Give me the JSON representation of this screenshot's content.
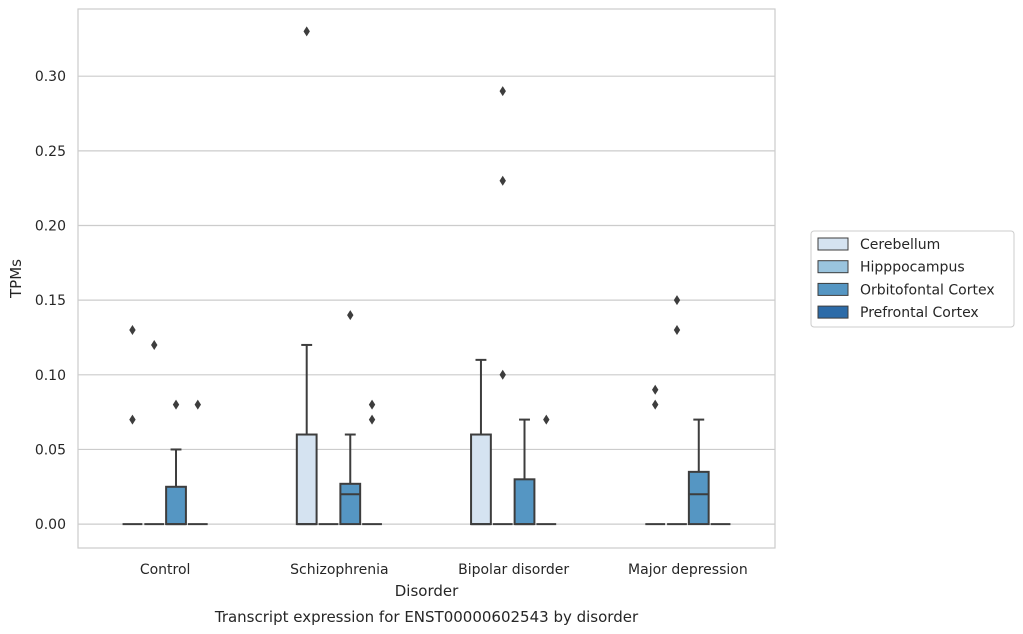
{
  "chart_data": {
    "type": "box",
    "caption": "Transcript expression for ENST00000602543 by disorder",
    "xlabel": "Disorder",
    "ylabel": "TPMs",
    "ylim": [
      -0.016,
      0.345
    ],
    "yticks": [
      0.0,
      0.05,
      0.1,
      0.15,
      0.2,
      0.25,
      0.3
    ],
    "ytick_labels": [
      "0.00",
      "0.05",
      "0.10",
      "0.15",
      "0.20",
      "0.25",
      "0.30"
    ],
    "grid": true,
    "legend_position": "right",
    "categories": [
      "Control",
      "Schizophrenia",
      "Bipolar disorder",
      "Major depression"
    ],
    "series": [
      {
        "name": "Cerebellum",
        "color": "#d5e3f1",
        "boxes": [
          {
            "q1": 0,
            "median": 0,
            "q3": 0,
            "whisker_low": 0,
            "whisker_high": 0,
            "outliers": [
              0.07,
              0.13
            ]
          },
          {
            "q1": 0,
            "median": 0,
            "q3": 0.06,
            "whisker_low": 0,
            "whisker_high": 0.12,
            "outliers": [
              0.33
            ]
          },
          {
            "q1": 0,
            "median": 0,
            "q3": 0.06,
            "whisker_low": 0,
            "whisker_high": 0.11,
            "outliers": []
          },
          {
            "q1": 0,
            "median": 0,
            "q3": 0,
            "whisker_low": 0,
            "whisker_high": 0,
            "outliers": [
              0.08,
              0.09
            ]
          }
        ]
      },
      {
        "name": "Hipppocampus",
        "color": "#9ac4de",
        "boxes": [
          {
            "q1": 0,
            "median": 0,
            "q3": 0,
            "whisker_low": 0,
            "whisker_high": 0,
            "outliers": [
              0.12
            ]
          },
          {
            "q1": 0,
            "median": 0,
            "q3": 0,
            "whisker_low": 0,
            "whisker_high": 0,
            "outliers": []
          },
          {
            "q1": 0,
            "median": 0,
            "q3": 0,
            "whisker_low": 0,
            "whisker_high": 0,
            "outliers": [
              0.1,
              0.23,
              0.29
            ]
          },
          {
            "q1": 0,
            "median": 0,
            "q3": 0,
            "whisker_low": 0,
            "whisker_high": 0,
            "outliers": [
              0.13,
              0.15
            ]
          }
        ]
      },
      {
        "name": "Orbitofontal Cortex",
        "color": "#5596c3",
        "boxes": [
          {
            "q1": 0,
            "median": 0,
            "q3": 0.025,
            "whisker_low": 0,
            "whisker_high": 0.05,
            "outliers": [
              0.08
            ]
          },
          {
            "q1": 0,
            "median": 0.02,
            "q3": 0.027,
            "whisker_low": 0,
            "whisker_high": 0.06,
            "outliers": [
              0.14
            ]
          },
          {
            "q1": 0,
            "median": 0,
            "q3": 0.03,
            "whisker_low": 0,
            "whisker_high": 0.07,
            "outliers": []
          },
          {
            "q1": 0,
            "median": 0.02,
            "q3": 0.035,
            "whisker_low": 0,
            "whisker_high": 0.07,
            "outliers": []
          }
        ]
      },
      {
        "name": "Prefrontal Cortex",
        "color": "#2c6ba8",
        "boxes": [
          {
            "q1": 0,
            "median": 0,
            "q3": 0,
            "whisker_low": 0,
            "whisker_high": 0,
            "outliers": [
              0.08
            ]
          },
          {
            "q1": 0,
            "median": 0,
            "q3": 0,
            "whisker_low": 0,
            "whisker_high": 0,
            "outliers": [
              0.07,
              0.08
            ]
          },
          {
            "q1": 0,
            "median": 0,
            "q3": 0,
            "whisker_low": 0,
            "whisker_high": 0,
            "outliers": [
              0.07
            ]
          },
          {
            "q1": 0,
            "median": 0,
            "q3": 0,
            "whisker_low": 0,
            "whisker_high": 0,
            "outliers": []
          }
        ]
      }
    ]
  }
}
